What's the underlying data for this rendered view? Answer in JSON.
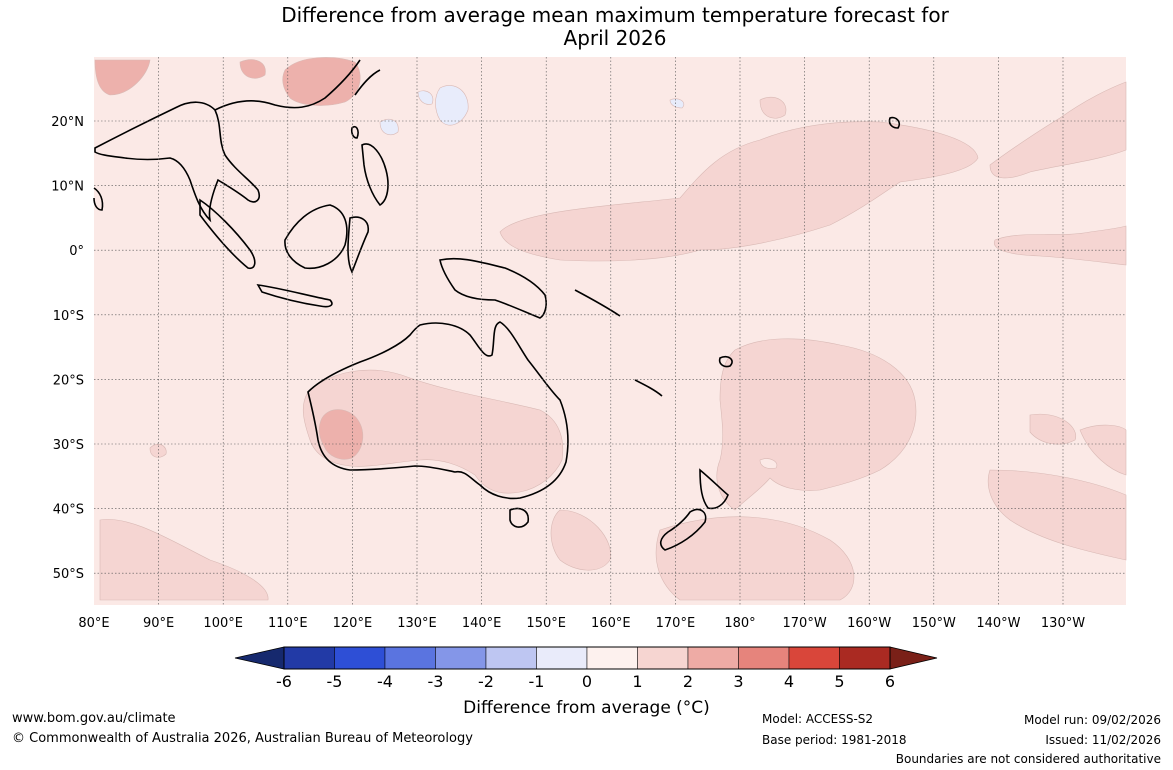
{
  "title": {
    "line1": "Difference from average mean maximum temperature forecast for",
    "line2": "April 2026"
  },
  "map": {
    "lon_labels": [
      "80°E",
      "90°E",
      "100°E",
      "110°E",
      "120°E",
      "130°E",
      "140°E",
      "150°E",
      "160°E",
      "170°E",
      "180°",
      "170°W",
      "160°W",
      "150°W",
      "140°W",
      "130°W"
    ],
    "lat_labels": [
      "20°N",
      "10°N",
      "0°",
      "10°S",
      "20°S",
      "30°S",
      "40°S",
      "50°S"
    ],
    "background_color": "#fbe9e6",
    "anomaly_band_color": "#f5d5d2",
    "warm_band_color": "#edb1ac",
    "cool_band_color": "#e8ecfb"
  },
  "colorbar": {
    "ticks": [
      "-6",
      "-5",
      "-4",
      "-3",
      "-2",
      "-1",
      "0",
      "1",
      "2",
      "3",
      "4",
      "5",
      "6"
    ],
    "colors": [
      "#223aa6",
      "#2e4fd6",
      "#5a74e0",
      "#8496e8",
      "#bec6f2",
      "#e9ebfa",
      "#fdf1ee",
      "#f6d5d1",
      "#eeaba5",
      "#e6847c",
      "#d9463a",
      "#aa2a22"
    ],
    "low_extend_color": "#16296e",
    "high_extend_color": "#7a2018",
    "label": "Difference from average (°C)"
  },
  "footer": {
    "website": "www.bom.gov.au/climate",
    "copyright": "© Commonwealth of Australia 2026, Australian Bureau of Meteorology",
    "model": "Model: ACCESS-S2",
    "base_period": "Base period: 1981-2018",
    "model_run": "Model run: 09/02/2026",
    "issued": "Issued: 11/02/2026",
    "boundaries_note": "Boundaries are not considered authoritative"
  }
}
